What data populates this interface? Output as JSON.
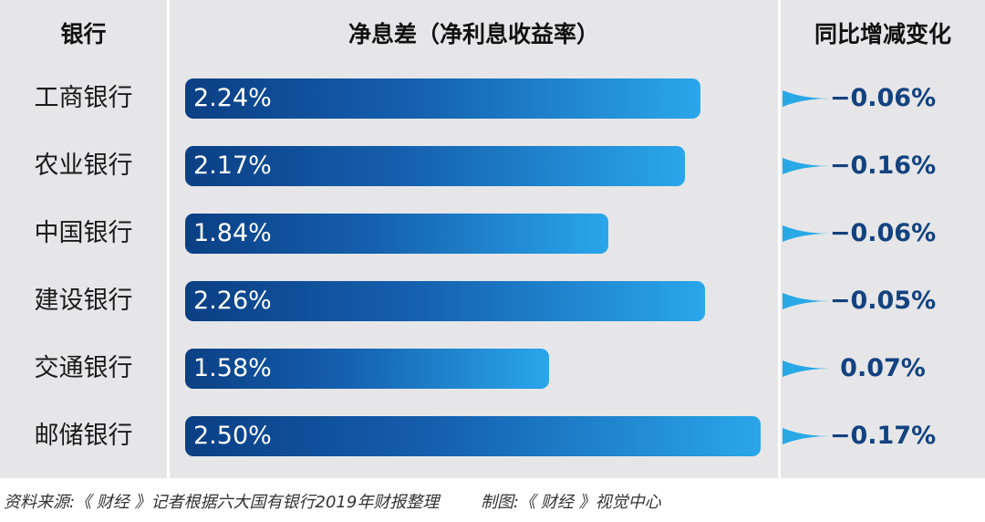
{
  "headers": {
    "bank": "银行",
    "nim": "净息差（净利息收益率）",
    "yoy": "同比增减变化"
  },
  "chart_data": {
    "type": "bar",
    "orientation": "horizontal",
    "categories": [
      "工商银行",
      "农业银行",
      "中国银行",
      "建设银行",
      "交通银行",
      "邮储银行"
    ],
    "values": [
      2.24,
      2.17,
      1.84,
      2.26,
      1.58,
      2.5
    ],
    "value_labels": [
      "2.24%",
      "2.17%",
      "1.84%",
      "2.26%",
      "1.58%",
      "2.50%"
    ],
    "yoy_change": [
      -0.06,
      -0.16,
      -0.06,
      -0.05,
      0.07,
      -0.17
    ],
    "yoy_labels": [
      "−0.06%",
      "−0.16%",
      "−0.06%",
      "−0.05%",
      "0.07%",
      "−0.17%"
    ],
    "xlim": [
      0,
      2.5
    ],
    "grid": false,
    "legend": "none"
  },
  "footer": {
    "source": "资料来源:《 财经 》记者根据六大国有银行2019年财报整理",
    "credit": "制图:《 财经 》视觉中心"
  },
  "colors": {
    "bar_start": "#0b3f84",
    "bar_end": "#2aa6ea",
    "change_text": "#13427f",
    "arrow": "#29a8e6",
    "panel": "#e6e6e8"
  }
}
